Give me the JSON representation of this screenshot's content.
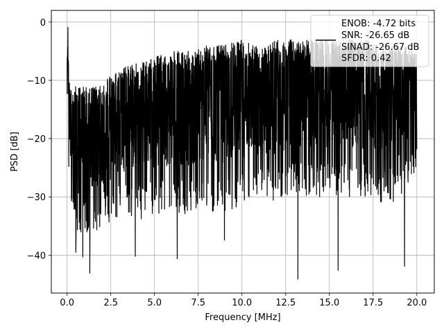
{
  "chart_data": {
    "type": "line",
    "title": "",
    "xlabel": "Frequency [MHz]",
    "ylabel": "PSD [dB]",
    "xlim": [
      -0.9,
      21.0
    ],
    "ylim": [
      -46.5,
      2.0
    ],
    "xticks": [
      0.0,
      2.5,
      5.0,
      7.5,
      10.0,
      12.5,
      15.0,
      17.5,
      20.0
    ],
    "xtick_labels": [
      "0.0",
      "2.5",
      "5.0",
      "7.5",
      "10.0",
      "12.5",
      "15.0",
      "17.5",
      "20.0"
    ],
    "yticks": [
      0,
      -10,
      -20,
      -30,
      -40
    ],
    "ytick_labels": [
      "0",
      "−10",
      "−20",
      "−30",
      "−40"
    ],
    "grid": true,
    "legend_position": "top-right",
    "legend_lines": [
      "ENOB: -4.72 bits",
      "SNR: -26.65 dB",
      "SINAD: -26.67 dB",
      "SFDR: 0.42"
    ],
    "series": [
      {
        "color": "#000000",
        "envelope": {
          "x": [
            0.0,
            0.05,
            0.1,
            0.3,
            0.5,
            1.0,
            1.5,
            2.0,
            2.5,
            3.0,
            4.0,
            5.0,
            6.0,
            7.0,
            8.0,
            9.0,
            10.0,
            11.0,
            12.0,
            13.0,
            14.0,
            15.0,
            16.0,
            17.0,
            18.0,
            19.0,
            20.0
          ],
          "upper": [
            -7,
            -1,
            -9,
            -12,
            -11,
            -11,
            -11,
            -11,
            -9,
            -8,
            -7,
            -6,
            -5,
            -5,
            -4,
            -4,
            -3,
            -4,
            -3,
            -3,
            -3,
            -3,
            -3,
            -3,
            -4,
            -4,
            -5
          ],
          "lower": [
            -18,
            -12,
            -27,
            -33,
            -38,
            -36,
            -37,
            -35,
            -35,
            -33,
            -34,
            -33,
            -33,
            -33,
            -33,
            -33,
            -32,
            -31,
            -31,
            -30,
            -30,
            -30,
            -30,
            -30,
            -31,
            -31,
            -25
          ]
        },
        "spikes": [
          {
            "x": 0.05,
            "y": -0.9
          },
          {
            "x": 0.5,
            "y": -39.5
          },
          {
            "x": 0.9,
            "y": -40.3
          },
          {
            "x": 1.3,
            "y": -43.1
          },
          {
            "x": 3.9,
            "y": -40.2
          },
          {
            "x": 6.3,
            "y": -40.6
          },
          {
            "x": 13.2,
            "y": -44.1
          },
          {
            "x": 15.5,
            "y": -42.6
          },
          {
            "x": 19.3,
            "y": -41.9
          },
          {
            "x": 9.0,
            "y": -37.4
          }
        ]
      }
    ]
  }
}
